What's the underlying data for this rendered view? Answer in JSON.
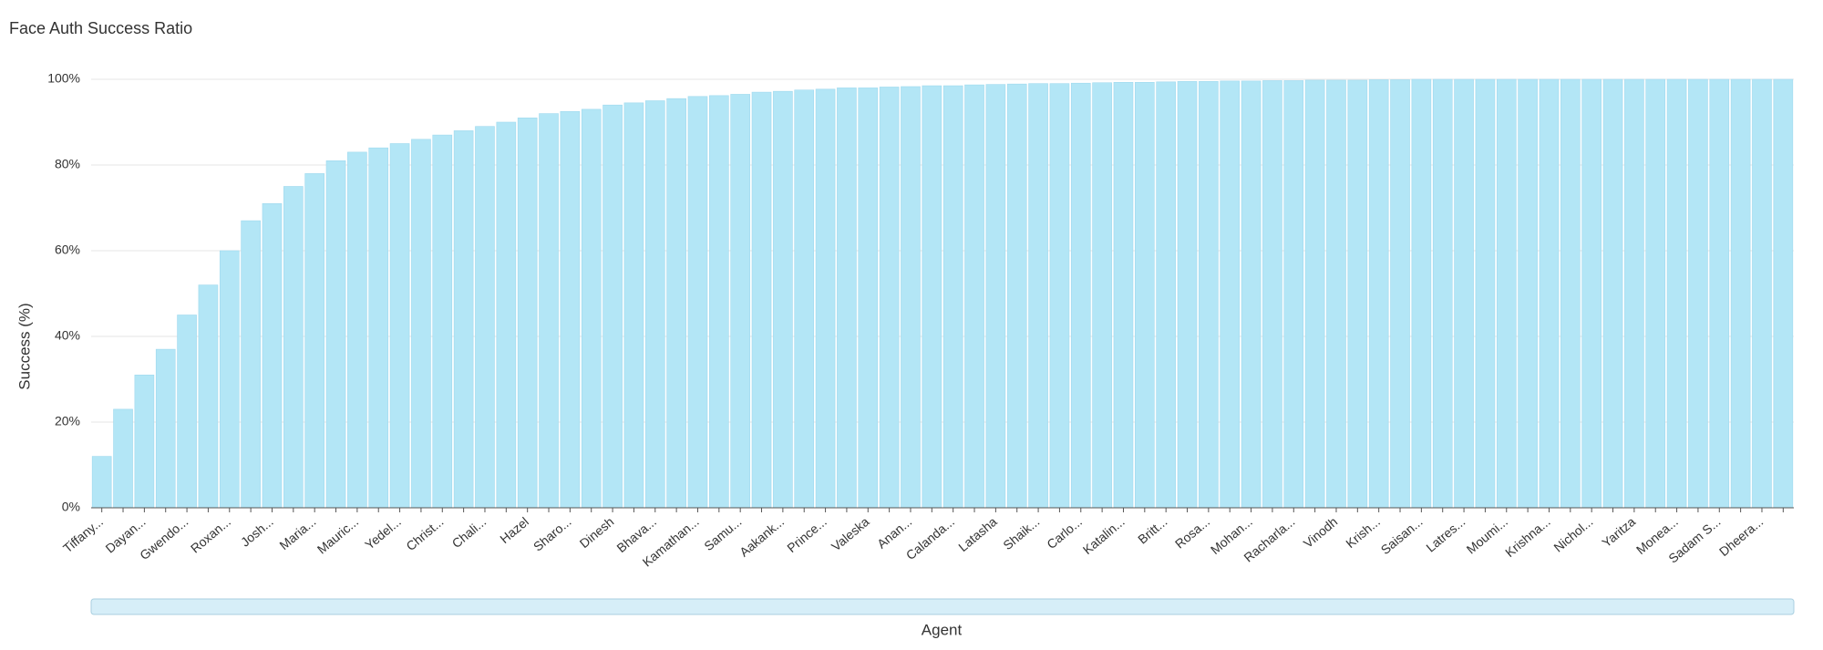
{
  "chart_data": {
    "type": "bar",
    "title": "Face Auth Success Ratio",
    "x_label": "Agent",
    "y_label": "Success (%)",
    "categories": [
      "Tiffany...",
      null,
      "Dayan...",
      null,
      "Gwendo...",
      null,
      "Roxan...",
      null,
      "Josh...",
      null,
      "Maria...",
      null,
      "Mauric...",
      null,
      "Yedel...",
      null,
      "Christ...",
      null,
      "Chali...",
      null,
      "Hazel",
      null,
      "Sharo...",
      null,
      "Dinesh",
      null,
      "Bhava...",
      null,
      "Kamathan...",
      null,
      "Samu...",
      null,
      "Aakank...",
      null,
      "Prince...",
      null,
      "Valeska",
      null,
      "Anan...",
      null,
      "Calanda...",
      null,
      "Latasha",
      null,
      "Shaik...",
      null,
      "Carlo...",
      null,
      "Katalin...",
      null,
      "Britt...",
      null,
      "Rosa...",
      null,
      "Mohan...",
      null,
      "Racharla...",
      null,
      "Vinodh",
      null,
      "Krish...",
      null,
      "Saisan...",
      null,
      "Latres...",
      null,
      "Moumi...",
      null,
      "Krishna...",
      null,
      "Nichol...",
      null,
      "Yaritza",
      null,
      "Monea...",
      null,
      "Sadam S...",
      null,
      "Dheera...",
      null
    ],
    "values": [
      12,
      23,
      31,
      37,
      45,
      52,
      60,
      67,
      71,
      75,
      78,
      81,
      83,
      84,
      85,
      86,
      87,
      88,
      89,
      90,
      91,
      92,
      92.5,
      93,
      94,
      94.5,
      95,
      95.5,
      96,
      96.2,
      96.5,
      97,
      97.2,
      97.5,
      97.7,
      98,
      98,
      98.2,
      98.3,
      98.5,
      98.5,
      98.7,
      98.8,
      98.9,
      99,
      99,
      99.1,
      99.2,
      99.3,
      99.3,
      99.4,
      99.5,
      99.5,
      99.6,
      99.6,
      99.7,
      99.7,
      99.8,
      99.8,
      99.8,
      99.9,
      99.9,
      100,
      100,
      100,
      100,
      100,
      100,
      100,
      100,
      100,
      100,
      100,
      100,
      100,
      100,
      100,
      100,
      100,
      100
    ],
    "color": "#b3e6f6",
    "ylim": [
      0,
      100
    ],
    "yticks": [
      {
        "value": 0,
        "label": "0%"
      },
      {
        "value": 20,
        "label": "20%"
      },
      {
        "value": 40,
        "label": "40%"
      },
      {
        "value": 60,
        "label": "60%"
      },
      {
        "value": 80,
        "label": "80%"
      },
      {
        "value": 100,
        "label": "100%"
      }
    ],
    "grid": true
  }
}
